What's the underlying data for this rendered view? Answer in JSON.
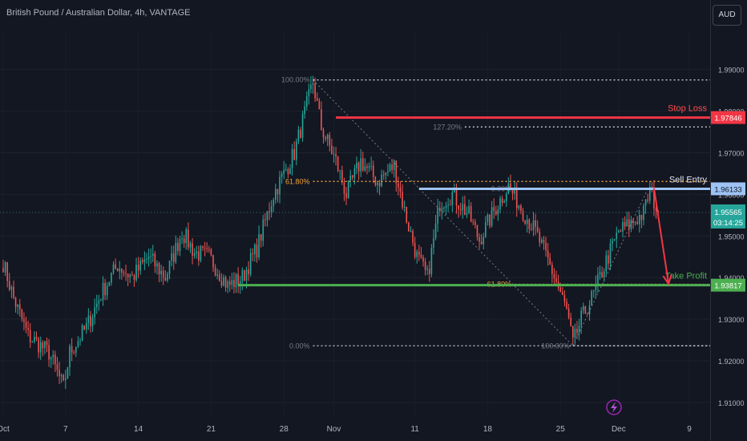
{
  "header": {
    "title": "British Pound / Australian Dollar, 4h, VANTAGE",
    "currency_button": "AUD"
  },
  "footer": {
    "flash_icon": "lightning-icon"
  },
  "colors": {
    "background": "#131722",
    "up": "#26a69a",
    "down": "#ef5350",
    "stop": "#f23645",
    "entry": "#9ec3f5",
    "take": "#4caf50",
    "fib": "#787b86",
    "fib_gold": "#f2a33a",
    "axis_text": "#b2b5be"
  },
  "chart_data": {
    "type": "candlestick",
    "title": "British Pound / Australian Dollar, 4h, VANTAGE",
    "ylim": [
      1.9065,
      1.999
    ],
    "y_ticks": [
      1.91,
      1.92,
      1.93,
      1.94,
      1.95,
      1.96,
      1.97,
      1.98,
      1.99
    ],
    "y_tick_labels": [
      "1.91000",
      "1.92000",
      "1.93000",
      "1.94000",
      "1.95000",
      "1.96000",
      "1.97000",
      "1.98000",
      "1.99000"
    ],
    "x_ticks": [
      {
        "label": "Oct",
        "bar": 0
      },
      {
        "label": "7",
        "bar": 30
      },
      {
        "label": "14",
        "bar": 65
      },
      {
        "label": "21",
        "bar": 100
      },
      {
        "label": "28",
        "bar": 135
      },
      {
        "label": "Nov",
        "bar": 159
      },
      {
        "label": "11",
        "bar": 198
      },
      {
        "label": "18",
        "bar": 233
      },
      {
        "label": "25",
        "bar": 268
      },
      {
        "label": "Dec",
        "bar": 296
      },
      {
        "label": "9",
        "bar": 330
      }
    ],
    "bar_count_visible": 340,
    "last_bar": 315,
    "anchors": [
      [
        0,
        1.9435
      ],
      [
        5,
        1.935
      ],
      [
        12,
        1.926
      ],
      [
        22,
        1.922
      ],
      [
        29,
        1.9135
      ],
      [
        32,
        1.922
      ],
      [
        40,
        1.928
      ],
      [
        47,
        1.936
      ],
      [
        55,
        1.943
      ],
      [
        62,
        1.94
      ],
      [
        70,
        1.945
      ],
      [
        78,
        1.94
      ],
      [
        86,
        1.951
      ],
      [
        92,
        1.946
      ],
      [
        99,
        1.945
      ],
      [
        108,
        1.938
      ],
      [
        115,
        1.94
      ],
      [
        122,
        1.947
      ],
      [
        130,
        1.96
      ],
      [
        140,
        1.97
      ],
      [
        149,
        1.987
      ],
      [
        153,
        1.976
      ],
      [
        160,
        1.968
      ],
      [
        165,
        1.96
      ],
      [
        172,
        1.968
      ],
      [
        180,
        1.963
      ],
      [
        188,
        1.967
      ],
      [
        193,
        1.956
      ],
      [
        199,
        1.945
      ],
      [
        204,
        1.94
      ],
      [
        210,
        1.958
      ],
      [
        216,
        1.96
      ],
      [
        224,
        1.955
      ],
      [
        229,
        1.949
      ],
      [
        236,
        1.956
      ],
      [
        243,
        1.962
      ],
      [
        250,
        1.956
      ],
      [
        256,
        1.951
      ],
      [
        262,
        1.944
      ],
      [
        266,
        1.939
      ],
      [
        271,
        1.932
      ],
      [
        274,
        1.924
      ],
      [
        278,
        1.93
      ],
      [
        284,
        1.936
      ],
      [
        290,
        1.944
      ],
      [
        296,
        1.951
      ],
      [
        302,
        1.953
      ],
      [
        308,
        1.9555
      ],
      [
        311,
        1.961
      ],
      [
        315,
        1.9556
      ]
    ],
    "price": {
      "value": 1.95565,
      "label": "1.95565",
      "countdown": "03:14:25"
    },
    "levels": [
      {
        "name": "Stop Loss",
        "price": 1.97846,
        "label": "1.97846",
        "from_bar": 160
      },
      {
        "name": "Sell Entry",
        "price": 1.96133,
        "label": "1.96133",
        "from_bar": 200
      },
      {
        "name": "Take Profit",
        "price": 1.93817,
        "label": "1.93817",
        "from_bar": 113
      }
    ],
    "fibonacci": [
      {
        "from": [
          149,
          1.9875
        ],
        "to": [
          274,
          1.9236
        ],
        "label_left": "100.00%",
        "label_low": "0.00%",
        "label_618": "61.80%"
      },
      {
        "from": [
          274,
          1.9236
        ],
        "to": [
          310,
          1.9613
        ],
        "label_low": "100.00%",
        "label_top": "0.00%",
        "label_1272": "127.20%",
        "label_618": "61.80%"
      }
    ],
    "fib_levels": [
      {
        "label": "100.00%",
        "price": 1.9875,
        "from_bar": 149,
        "gold": false
      },
      {
        "label": "127.20%",
        "price": 1.9762,
        "from_bar": 222,
        "gold": false
      },
      {
        "label": "61.80%",
        "price": 1.9631,
        "from_bar": 149,
        "gold": true
      },
      {
        "label": "0.00%",
        "price": 1.9613,
        "from_bar": 246,
        "gold": false
      },
      {
        "label": "61.80%",
        "price": 1.9384,
        "from_bar": 246,
        "gold": true
      },
      {
        "label": "0.00%",
        "price": 1.9236,
        "from_bar": 149,
        "gold": false
      },
      {
        "label": "100.00%",
        "price": 1.9236,
        "from_bar": 274,
        "gold": false
      }
    ],
    "projection": {
      "from": [
        313,
        1.9615
      ],
      "to": [
        320,
        1.9385
      ]
    }
  }
}
